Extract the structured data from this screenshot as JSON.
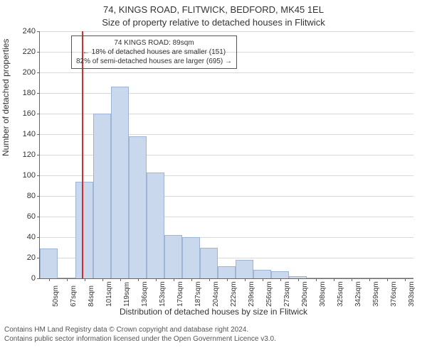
{
  "header": {
    "line1": "74, KINGS ROAD, FLITWICK, BEDFORD, MK45 1EL",
    "line2": "Size of property relative to detached houses in Flitwick"
  },
  "axes": {
    "ylabel": "Number of detached properties",
    "xlabel": "Distribution of detached houses by size in Flitwick",
    "ylim": [
      0,
      240
    ],
    "ytick_step": 20,
    "yticks": [
      0,
      20,
      40,
      60,
      80,
      100,
      120,
      140,
      160,
      180,
      200,
      220,
      240
    ],
    "grid_color": "#d9d9d9"
  },
  "chart": {
    "type": "histogram",
    "categories": [
      "50sqm",
      "67sqm",
      "84sqm",
      "101sqm",
      "119sqm",
      "136sqm",
      "153sqm",
      "170sqm",
      "187sqm",
      "204sqm",
      "222sqm",
      "239sqm",
      "256sqm",
      "273sqm",
      "290sqm",
      "308sqm",
      "325sqm",
      "342sqm",
      "359sqm",
      "376sqm",
      "393sqm"
    ],
    "values": [
      29,
      0,
      94,
      160,
      186,
      138,
      103,
      42,
      40,
      30,
      12,
      18,
      8,
      7,
      2,
      1,
      1,
      1,
      0,
      1,
      0
    ],
    "bar_color": "#c9d8ed",
    "bar_border": "#9db4d4",
    "bar_width": 1.0,
    "background_color": "#ffffff"
  },
  "marker": {
    "color": "#d22e2e",
    "x_category_index": 2,
    "x_within_bin": 0.35
  },
  "annotation": {
    "line1": "74 KINGS ROAD: 89sqm",
    "line2": "← 18% of detached houses are smaller (151)",
    "line3": "82% of semi-detached houses are larger (695) →",
    "border_color": "#555555"
  },
  "footer": {
    "line1": "Contains HM Land Registry data © Crown copyright and database right 2024.",
    "line2": "Contains public sector information licensed under the Open Government Licence v3.0."
  }
}
